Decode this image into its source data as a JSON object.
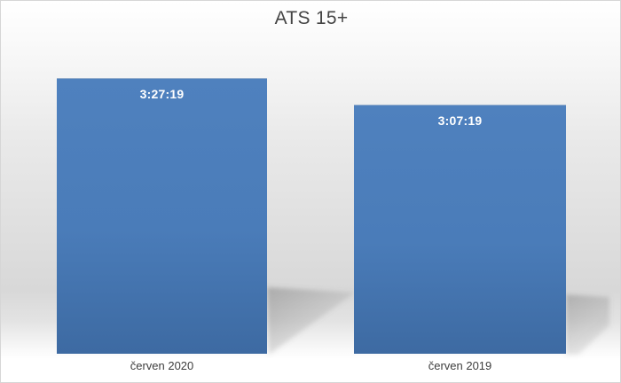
{
  "chart": {
    "title": "ATS 15+",
    "bars": [
      {
        "category": "červen 2020",
        "label": "3:27:19"
      },
      {
        "category": "červen 2019",
        "label": "3:07:19"
      }
    ]
  },
  "chart_data": {
    "type": "bar",
    "title": "ATS 15+",
    "categories": [
      "červen 2020",
      "červen 2019"
    ],
    "value_labels": [
      "3:27:19",
      "3:07:19"
    ],
    "values": [
      12439,
      11239
    ],
    "unit": "duration h:mm:ss (converted to seconds)",
    "xlabel": "",
    "ylabel": "",
    "ylim": [
      0,
      12439
    ],
    "grid": false,
    "legend": false,
    "value_label_position": "inside-end",
    "colors": {
      "bar_top": "#4f81be",
      "bar_bottom": "#3d6aa2",
      "title_text": "#444444",
      "category_text": "#3d3d3d",
      "value_label_text": "#ffffff",
      "background_gray": "#d8d8d8",
      "border": "#d6d6d6"
    }
  }
}
